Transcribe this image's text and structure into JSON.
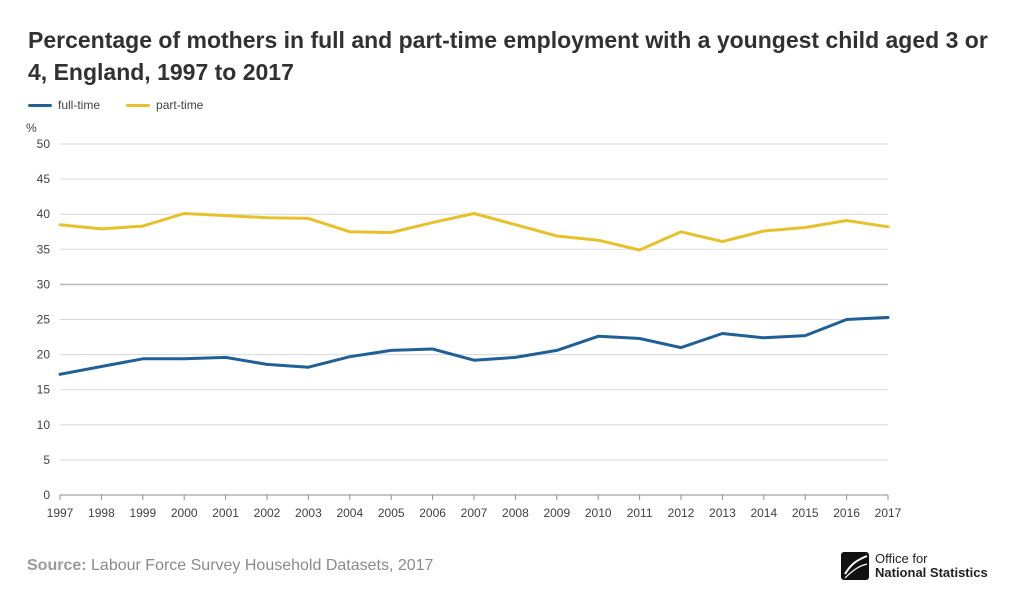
{
  "chart_data": {
    "type": "line",
    "title": "Percentage of mothers in full and part-time employment with a youngest child aged 3 or 4, England, 1997 to 2017",
    "ylabel": "%",
    "xlabel": "",
    "ylim": [
      0,
      50
    ],
    "yticks": [
      0,
      5,
      10,
      15,
      20,
      25,
      30,
      35,
      40,
      45,
      50
    ],
    "grid": true,
    "legend_position": "top-left",
    "x": [
      "1997",
      "1998",
      "1999",
      "2000",
      "2001",
      "2002",
      "2003",
      "2004",
      "2005",
      "2006",
      "2007",
      "2008",
      "2009",
      "2010",
      "2011",
      "2012",
      "2013",
      "2014",
      "2015",
      "2016",
      "2017"
    ],
    "series": [
      {
        "name": "full-time",
        "color": "#206095",
        "values": [
          17.2,
          18.3,
          19.4,
          19.4,
          19.6,
          18.6,
          18.2,
          19.7,
          20.6,
          20.8,
          19.2,
          19.6,
          20.6,
          22.6,
          22.3,
          21.0,
          23.0,
          22.4,
          22.7,
          25.0,
          25.3
        ]
      },
      {
        "name": "part-time",
        "color": "#E7C12C",
        "values": [
          38.5,
          37.9,
          38.3,
          40.1,
          39.8,
          39.5,
          39.4,
          37.5,
          37.4,
          38.8,
          40.1,
          38.5,
          36.9,
          36.3,
          34.9,
          37.5,
          36.1,
          37.6,
          38.1,
          39.1,
          38.2
        ]
      }
    ]
  },
  "source": {
    "label": "Source:",
    "text": " Labour Force Survey Household Datasets, 2017"
  },
  "logo": {
    "line1": "Office for",
    "line2": "National Statistics"
  },
  "colors": {
    "axis_text": "#414042",
    "grid": "#d9d9d9",
    "midline": "#bcbcbc"
  }
}
